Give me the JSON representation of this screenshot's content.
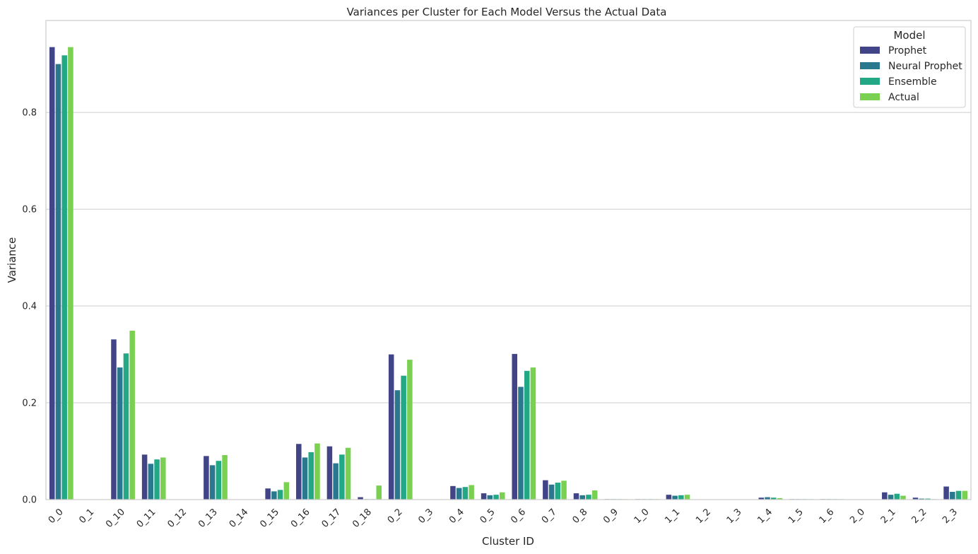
{
  "chart_data": {
    "type": "bar",
    "title": "Variances per Cluster for Each Model Versus the Actual Data",
    "xlabel": "Cluster ID",
    "ylabel": "Variance",
    "ylim": [
      0,
      0.99
    ],
    "yticks": [
      "0.0",
      "0.2",
      "0.4",
      "0.6",
      "0.8"
    ],
    "grid": "horizontal",
    "legend": {
      "title": "Model",
      "placement": "top-right"
    },
    "categories": [
      "0_0",
      "0_1",
      "0_10",
      "0_11",
      "0_12",
      "0_13",
      "0_14",
      "0_15",
      "0_16",
      "0_17",
      "0_18",
      "0_2",
      "0_3",
      "0_4",
      "0_5",
      "0_6",
      "0_7",
      "0_8",
      "0_9",
      "1_0",
      "1_1",
      "1_2",
      "1_3",
      "1_4",
      "1_5",
      "1_6",
      "2_0",
      "2_1",
      "2_2",
      "2_3"
    ],
    "series": [
      {
        "name": "Prophet",
        "color": "#414487",
        "values": [
          0.935,
          0.0,
          0.331,
          0.093,
          0.0,
          0.09,
          0.0,
          0.023,
          0.115,
          0.11,
          0.005,
          0.3,
          0.0,
          0.028,
          0.013,
          0.301,
          0.04,
          0.013,
          0.001,
          0.001,
          0.01,
          0.0,
          0.0,
          0.004,
          0.001,
          0.001,
          0.0,
          0.015,
          0.004,
          0.027
        ]
      },
      {
        "name": "Neural Prophet",
        "color": "#2a788e",
        "values": [
          0.9,
          0.0,
          0.273,
          0.074,
          0.0,
          0.071,
          0.0,
          0.017,
          0.087,
          0.075,
          0.001,
          0.226,
          0.0,
          0.024,
          0.009,
          0.233,
          0.031,
          0.009,
          0.001,
          0.001,
          0.008,
          0.0,
          0.0,
          0.005,
          0.001,
          0.001,
          0.0,
          0.01,
          0.002,
          0.016
        ]
      },
      {
        "name": "Ensemble",
        "color": "#22a884",
        "values": [
          0.918,
          0.0,
          0.302,
          0.083,
          0.0,
          0.08,
          0.0,
          0.02,
          0.098,
          0.093,
          0.001,
          0.256,
          0.0,
          0.026,
          0.01,
          0.266,
          0.035,
          0.01,
          0.001,
          0.001,
          0.009,
          0.0,
          0.0,
          0.004,
          0.001,
          0.001,
          0.0,
          0.012,
          0.002,
          0.018
        ]
      },
      {
        "name": "Actual",
        "color": "#7ad151",
        "values": [
          0.935,
          0.0,
          0.349,
          0.087,
          0.0,
          0.092,
          0.0,
          0.036,
          0.116,
          0.107,
          0.029,
          0.289,
          0.0,
          0.03,
          0.015,
          0.273,
          0.039,
          0.019,
          0.001,
          0.001,
          0.01,
          0.0,
          0.0,
          0.003,
          0.001,
          0.001,
          0.0,
          0.008,
          0.001,
          0.018
        ]
      }
    ]
  }
}
